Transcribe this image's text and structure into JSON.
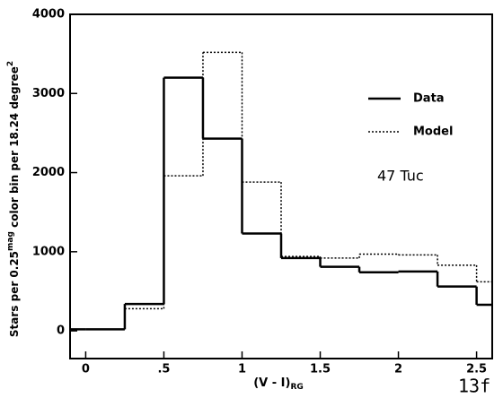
{
  "chart_data": {
    "type": "histogram",
    "ylabel": [
      "Stars per 0.25",
      "mag",
      " color bin per 18.24 degree",
      "2"
    ],
    "xlabel": [
      "(V - I)",
      "RG"
    ],
    "annotation": "47 Tuc",
    "panel_label": "13f",
    "bins": [
      -0.25,
      0,
      0.25,
      0.5,
      0.75,
      1.0,
      1.25,
      1.5,
      1.75,
      2.0,
      2.25,
      2.5,
      2.75
    ],
    "series": [
      {
        "name": "Data",
        "color": "#000000",
        "style": "solid",
        "values": [
          20,
          20,
          340,
          3200,
          2430,
          1230,
          920,
          810,
          740,
          750,
          560,
          330
        ]
      },
      {
        "name": "Model",
        "color": "#000000",
        "style": "dotted",
        "values": [
          20,
          20,
          280,
          1960,
          3520,
          1880,
          940,
          920,
          970,
          960,
          830,
          620
        ]
      }
    ],
    "xlim": [
      -0.1,
      2.6
    ],
    "ylim": [
      -350,
      4000
    ],
    "xticks": [
      0,
      {
        "value": 0.5,
        "label": ".5"
      },
      1,
      1.5,
      2,
      2.5
    ],
    "yticks": [
      0,
      1000,
      2000,
      3000,
      4000
    ],
    "legend": "upper right"
  }
}
